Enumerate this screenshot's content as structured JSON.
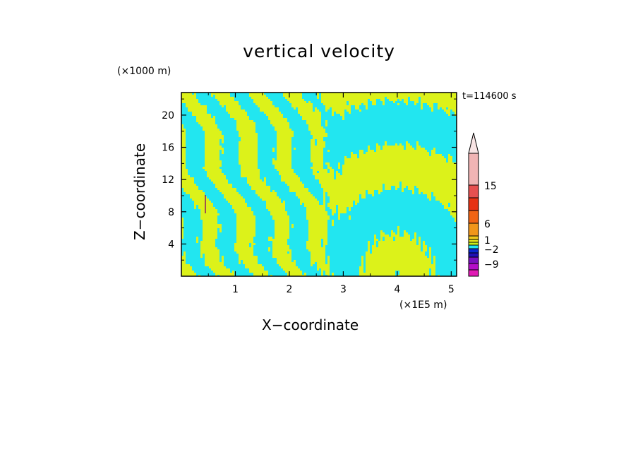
{
  "chart_data": {
    "type": "heatmap",
    "title": "vertical velocity",
    "xlabel": "X−coordinate",
    "ylabel": "Z−coordinate",
    "x_unit": "(×1E5 m)",
    "y_unit": "(×1000 m)",
    "time_label": "t=114600 s",
    "xlim": [
      0,
      5.1
    ],
    "ylim": [
      0,
      22.8
    ],
    "x_ticks": [
      1,
      2,
      3,
      4,
      5
    ],
    "y_ticks": [
      4,
      8,
      12,
      16,
      20
    ],
    "field_colors": {
      "negative": "#22e6f0",
      "positive": "#dcf21a"
    },
    "colorbar": {
      "tick_labels": [
        "15",
        "6",
        "1",
        "−2",
        "−9"
      ],
      "tick_values": [
        15,
        6,
        1,
        -2,
        -9
      ],
      "levels": [
        {
          "color": "#e01ab4"
        },
        {
          "color": "#b40ec8"
        },
        {
          "color": "#7a10c0"
        },
        {
          "color": "#2010b4"
        },
        {
          "color": "#0a28d0"
        },
        {
          "color": "#22e6f0"
        },
        {
          "color": "#c8f01a"
        },
        {
          "color": "#e6e61a"
        },
        {
          "color": "#f0c81a"
        },
        {
          "color": "#f0961a"
        },
        {
          "color": "#f06414"
        },
        {
          "color": "#e63214"
        },
        {
          "color": "#e65050"
        },
        {
          "color": "#f0b4b4"
        }
      ]
    }
  }
}
